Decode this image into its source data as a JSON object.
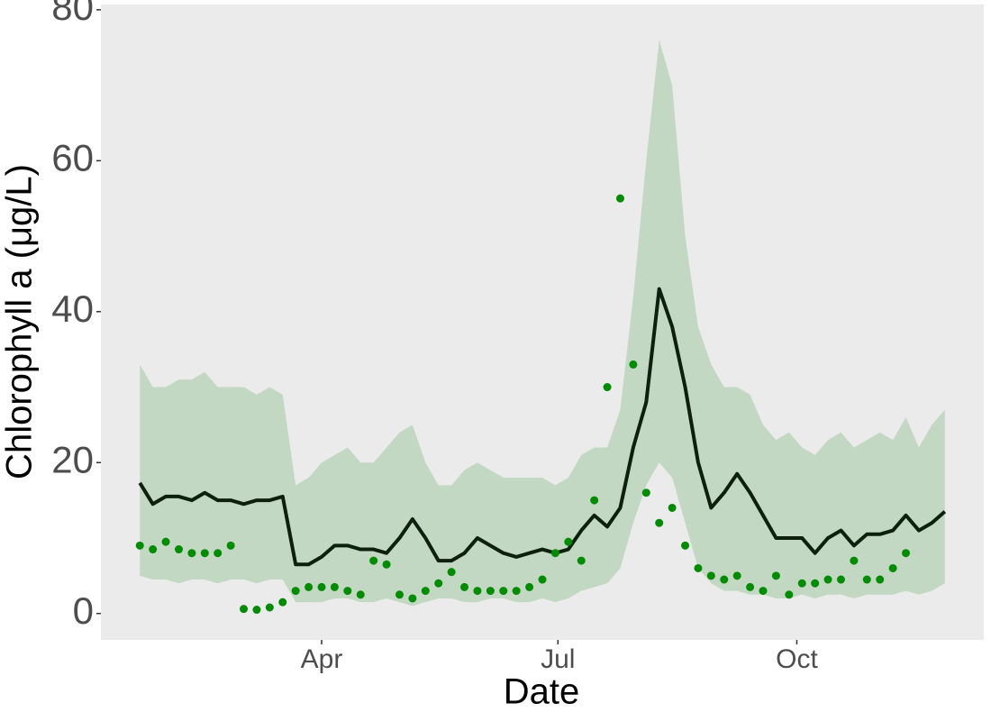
{
  "chart_data": {
    "type": "line",
    "x_label": "Date",
    "y_label": "Chlorophyll a (μg/L)",
    "x": [
      21,
      26,
      31,
      36,
      41,
      46,
      51,
      56,
      61,
      66,
      71,
      76,
      81,
      86,
      91,
      96,
      101,
      106,
      111,
      116,
      121,
      126,
      131,
      136,
      141,
      146,
      151,
      156,
      161,
      166,
      171,
      176,
      181,
      186,
      191,
      196,
      201,
      206,
      211,
      216,
      221,
      226,
      231,
      236,
      241,
      246,
      251,
      256,
      261,
      266,
      271,
      276,
      281,
      286,
      291,
      296,
      301,
      306,
      311,
      316,
      321,
      326,
      331
    ],
    "xlim": [
      6,
      346
    ],
    "xticks": [
      {
        "value": 91,
        "label": "Apr"
      },
      {
        "value": 182,
        "label": "Jul"
      },
      {
        "value": 274,
        "label": "Oct"
      }
    ],
    "ylim": [
      -3.5,
      80.7
    ],
    "yticks": [
      0,
      20,
      40,
      60,
      80
    ],
    "grid": false,
    "background": "#ebebeb",
    "series": [
      {
        "type": "ribbon",
        "color": "#c3d8c3",
        "lower": [
          5,
          4.5,
          4.5,
          4,
          4.5,
          4.5,
          4,
          4.5,
          4.5,
          4,
          4.5,
          4.5,
          1.5,
          1.5,
          1.5,
          2,
          2,
          1.5,
          1.5,
          2,
          1.5,
          1,
          1.5,
          2,
          2,
          1.5,
          1.5,
          2,
          2,
          1.5,
          1.5,
          2,
          1.5,
          2,
          3,
          3.5,
          4,
          6,
          12,
          17,
          20,
          18,
          12,
          6,
          4,
          3,
          3,
          2.5,
          2.5,
          2,
          2,
          2.5,
          2,
          2.5,
          2.5,
          2,
          2.5,
          2.5,
          2.5,
          3,
          2.5,
          3,
          4
        ],
        "upper": [
          33,
          30,
          30,
          31,
          31,
          32,
          30,
          30,
          30,
          29,
          30,
          29,
          17,
          18,
          20,
          21,
          22,
          20,
          20,
          22,
          24,
          25,
          20,
          17,
          17,
          19,
          20,
          19,
          18,
          18,
          18,
          18,
          17,
          18,
          21,
          22,
          22,
          27,
          42,
          60,
          76,
          70,
          50,
          38,
          33,
          30,
          30,
          29,
          25,
          23,
          24,
          22,
          21,
          23,
          24,
          22,
          23,
          24,
          23,
          26,
          22,
          25,
          27
        ]
      },
      {
        "type": "line",
        "color": "#0d1f0d",
        "values": [
          17.3,
          14.5,
          15.5,
          15.5,
          15,
          16,
          15,
          15,
          14.5,
          15,
          15,
          15.5,
          6.5,
          6.5,
          7.5,
          9,
          9,
          8.5,
          8.5,
          8,
          10,
          12.5,
          10,
          7,
          7,
          8,
          10,
          9,
          8,
          7.5,
          8,
          8.5,
          8,
          8.5,
          11,
          13,
          11.5,
          14,
          22,
          28,
          43,
          38,
          30,
          20,
          14,
          16,
          18.5,
          16,
          13,
          10,
          10,
          10,
          8,
          10,
          11,
          9,
          10.5,
          10.5,
          11,
          13,
          11,
          12,
          13.5
        ]
      },
      {
        "type": "scatter",
        "color": "#008b00",
        "values": [
          9,
          8.5,
          9.5,
          8.5,
          8,
          8,
          8,
          9,
          0.6,
          0.5,
          0.8,
          1.5,
          3,
          3.5,
          3.5,
          3.5,
          3,
          2.5,
          7,
          6.5,
          2.5,
          2,
          3,
          4,
          5.5,
          3.5,
          3,
          3,
          3,
          3,
          3.5,
          4.5,
          8,
          9.5,
          7,
          15,
          30,
          55,
          33,
          16,
          12,
          14,
          9,
          6,
          5,
          4.5,
          5,
          3.5,
          3,
          5,
          2.5,
          4,
          4,
          4.5,
          4.5,
          7,
          4.5,
          4.5,
          6,
          8,
          null,
          null,
          null
        ]
      }
    ]
  }
}
